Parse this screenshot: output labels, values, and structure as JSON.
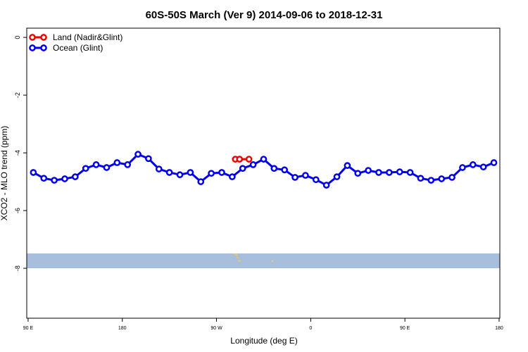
{
  "chart_data": {
    "type": "line",
    "title": "60S-50S March (Ver 9)   2014-09-06 to 2018-12-31",
    "x_label": "Longitude (deg E)",
    "y_label": "XCO2 - MLO trend (ppm)",
    "xlim": [
      88.7,
      540.7
    ],
    "xticks": [
      {
        "value": 90,
        "label": "90 E"
      },
      180,
      {
        "value": 270,
        "label": "90 W"
      },
      {
        "value": 360,
        "label": "0"
      },
      {
        "value": 450,
        "label": "90 E"
      },
      {
        "value": 540,
        "label": "180"
      }
    ],
    "ylim": [
      -9.73,
      0.32
    ],
    "yticks": [
      0,
      -2,
      -4,
      -6,
      -8
    ],
    "legend": "top-left",
    "series": [
      {
        "name": "Land (Nadir&Glint)",
        "color": "#ee0000",
        "x": [
          288,
          292,
          301
        ],
        "values": [
          -4.22,
          -4.22,
          -4.22
        ]
      },
      {
        "name": "Ocean (Glint)",
        "color": "#0000ee",
        "x": [
          95,
          105,
          115,
          125,
          135,
          145,
          155,
          165,
          175,
          185,
          195,
          205,
          215,
          225,
          235,
          245,
          255,
          265,
          275,
          285,
          295,
          305,
          315,
          325,
          335,
          345,
          355,
          365,
          375,
          385,
          395,
          405,
          415,
          425,
          435,
          445,
          455,
          465,
          475,
          485,
          495,
          505,
          515,
          525,
          535
        ],
        "values": [
          -4.68,
          -4.88,
          -4.95,
          -4.9,
          -4.83,
          -4.54,
          -4.41,
          -4.51,
          -4.34,
          -4.41,
          -4.05,
          -4.2,
          -4.56,
          -4.68,
          -4.76,
          -4.68,
          -5.0,
          -4.71,
          -4.68,
          -4.83,
          -4.54,
          -4.41,
          -4.22,
          -4.54,
          -4.59,
          -4.85,
          -4.78,
          -4.93,
          -5.12,
          -4.83,
          -4.44,
          -4.71,
          -4.61,
          -4.68,
          -4.68,
          -4.66,
          -4.68,
          -4.88,
          -4.95,
          -4.9,
          -4.85,
          -4.51,
          -4.41,
          -4.49,
          -4.34
        ]
      }
    ]
  }
}
